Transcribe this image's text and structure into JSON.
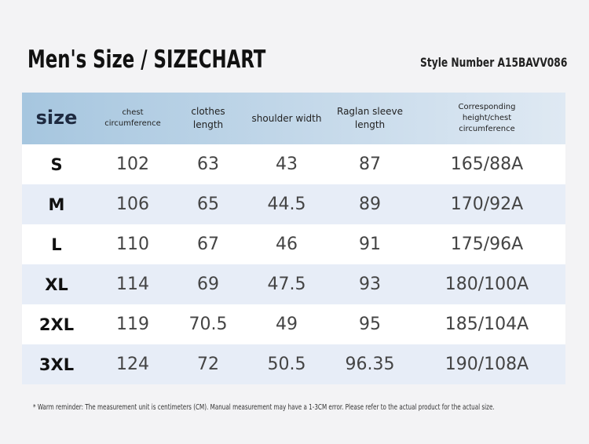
{
  "header": {
    "title": "Men's Size / SIZECHART",
    "style_number": "Style Number A15BAVV086"
  },
  "table": {
    "columns": [
      "size",
      "chest circumference",
      "clothes length",
      "shoulder width",
      "Raglan sleeve length",
      "Corresponding height/chest circumference"
    ],
    "rows": [
      [
        "S",
        102,
        63,
        43,
        87,
        "165/88A"
      ],
      [
        "M",
        106,
        65,
        44.5,
        89,
        "170/92A"
      ],
      [
        "L",
        110,
        67,
        46,
        91,
        "175/96A"
      ],
      [
        "XL",
        114,
        69,
        47.5,
        93,
        "180/100A"
      ],
      [
        "2XL",
        119,
        70.5,
        49,
        95,
        "185/104A"
      ],
      [
        "3XL",
        124,
        72,
        50.5,
        96.35,
        "190/108A"
      ]
    ]
  },
  "footnote": "* Warm reminder: The measurement unit is centimeters (CM). Manual measurement may have a 1-3CM error. Please refer to the actual product for the actual size."
}
